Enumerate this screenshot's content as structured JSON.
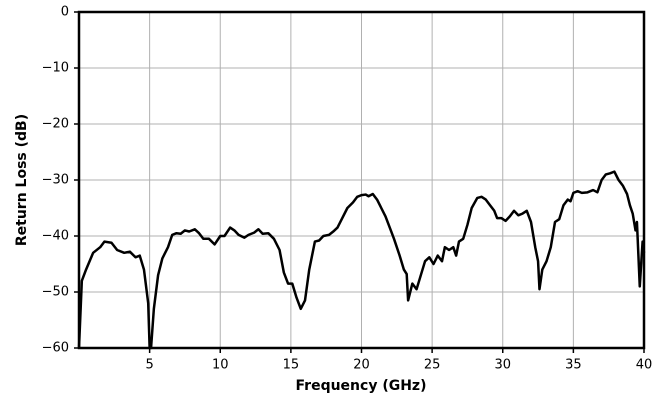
{
  "chart_data": {
    "type": "line",
    "xlabel": "Frequency (GHz)",
    "ylabel": "Return Loss (dB)",
    "x": [
      0,
      0.2,
      0.5,
      1,
      1.5,
      1.8,
      2.3,
      2.7,
      3.2,
      3.6,
      4.0,
      4.3,
      4.6,
      4.9,
      5.0,
      5.1,
      5.3,
      5.6,
      5.9,
      6.3,
      6.6,
      6.9,
      7.2,
      7.5,
      7.8,
      8.2,
      8.5,
      8.8,
      9.2,
      9.6,
      10.0,
      10.3,
      10.7,
      11.0,
      11.3,
      11.7,
      12.0,
      12.4,
      12.7,
      13.0,
      13.4,
      13.8,
      14.2,
      14.5,
      14.8,
      15.1,
      15.4,
      15.7,
      16.0,
      16.3,
      16.7,
      17.0,
      17.3,
      17.7,
      18.0,
      18.3,
      18.6,
      19.0,
      19.4,
      19.7,
      20.0,
      20.3,
      20.5,
      20.8,
      21.1,
      21.4,
      21.7,
      22.0,
      22.3,
      22.7,
      23.0,
      23.2,
      23.3,
      23.6,
      23.9,
      24.2,
      24.5,
      24.8,
      25.1,
      25.4,
      25.7,
      25.9,
      26.2,
      26.5,
      26.7,
      26.9,
      27.2,
      27.5,
      27.8,
      28.2,
      28.5,
      28.8,
      29.1,
      29.4,
      29.6,
      29.9,
      30.2,
      30.5,
      30.8,
      31.1,
      31.4,
      31.7,
      32.0,
      32.3,
      32.5,
      32.6,
      32.8,
      33.1,
      33.4,
      33.7,
      34.0,
      34.3,
      34.6,
      34.8,
      35.0,
      35.3,
      35.6,
      36.0,
      36.4,
      36.7,
      37.0,
      37.3,
      37.6,
      37.9,
      38.2,
      38.5,
      38.8,
      39.0,
      39.2,
      39.4,
      39.5,
      39.7,
      39.9,
      40.0
    ],
    "values": [
      -60,
      -48,
      -46,
      -43,
      -42,
      -41,
      -41.2,
      -42.5,
      -43,
      -42.8,
      -43.8,
      -43.5,
      -46,
      -52,
      -60,
      -60,
      -53,
      -47,
      -44,
      -42,
      -39.8,
      -39.5,
      -39.6,
      -39,
      -39.2,
      -38.8,
      -39.5,
      -40.5,
      -40.5,
      -41.5,
      -40,
      -40,
      -38.5,
      -39,
      -39.8,
      -40.3,
      -39.8,
      -39.4,
      -38.8,
      -39.6,
      -39.5,
      -40.5,
      -42.5,
      -46.5,
      -48.5,
      -48.5,
      -51,
      -53,
      -51.5,
      -46,
      -41,
      -40.8,
      -40,
      -39.8,
      -39.2,
      -38.5,
      -37,
      -35,
      -34,
      -33,
      -32.7,
      -32.6,
      -32.9,
      -32.5,
      -33.5,
      -35,
      -36.5,
      -38.5,
      -40.5,
      -43.5,
      -46,
      -46.8,
      -51.5,
      -48.5,
      -49.5,
      -47,
      -44.5,
      -43.8,
      -45,
      -43.5,
      -44.5,
      -42,
      -42.5,
      -42,
      -43.5,
      -41,
      -40.5,
      -38,
      -35,
      -33.2,
      -33,
      -33.5,
      -34.5,
      -35.5,
      -36.8,
      -36.8,
      -37.3,
      -36.5,
      -35.5,
      -36.3,
      -36,
      -35.5,
      -37.5,
      -42,
      -44.5,
      -49.5,
      -46,
      -44.5,
      -42,
      -37.5,
      -37,
      -34.5,
      -33.5,
      -33.8,
      -32.3,
      -32,
      -32.3,
      -32.2,
      -31.8,
      -32.2,
      -30,
      -29,
      -28.8,
      -28.5,
      -30,
      -31,
      -32.5,
      -34.5,
      -36,
      -39,
      -37.5,
      -49,
      -41,
      -43
    ],
    "color": "#000000",
    "xlim": [
      0,
      40
    ],
    "xticks": [
      5,
      10,
      15,
      20,
      25,
      30,
      35,
      40
    ],
    "ylim": [
      -60,
      0
    ],
    "yticks": [
      0,
      {
        "value": -10,
        "label": "−10"
      },
      {
        "value": -20,
        "label": "−20"
      },
      {
        "value": -30,
        "label": "−30"
      },
      {
        "value": -40,
        "label": "−40"
      },
      {
        "value": -50,
        "label": "−50"
      },
      {
        "value": -60,
        "label": "−60"
      }
    ],
    "grid": true
  }
}
